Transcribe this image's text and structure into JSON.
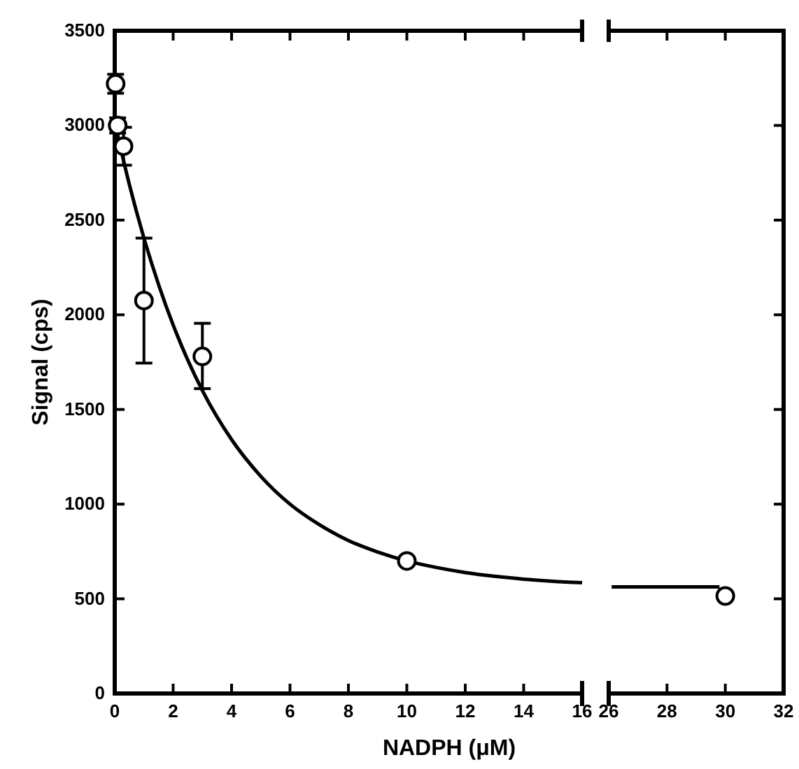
{
  "chart_data": [
    {
      "type": "scatter",
      "xlabel": "NADPH (μM)",
      "ylabel": "Signal (cps)",
      "xlim": [
        0,
        16
      ],
      "ylim": [
        0,
        3500
      ],
      "xticks": [
        0,
        2,
        4,
        6,
        8,
        10,
        12,
        14,
        16
      ],
      "yticks": [
        0,
        500,
        1000,
        1500,
        2000,
        2500,
        3000,
        3500
      ],
      "series": [
        {
          "color": "#000000",
          "marker": "circle",
          "x": [
            0.03,
            0.1,
            0.3,
            1,
            3,
            10
          ],
          "values": [
            3220,
            3000,
            2890,
            2075,
            1780,
            700
          ],
          "errors": [
            [
              3170,
              3270
            ],
            [
              2960,
              3040
            ],
            [
              2790,
              2990
            ],
            [
              1745,
              2405
            ],
            [
              1610,
              1955
            ],
            null
          ]
        },
        {
          "type": "line",
          "color": "#000000",
          "x": [
            0,
            0.5,
            1,
            1.5,
            2,
            2.5,
            3,
            4,
            5,
            6,
            7,
            8,
            9,
            10,
            11,
            12,
            13,
            14,
            15,
            16
          ],
          "values": [
            3017,
            2688,
            2405,
            2160,
            1946,
            1761,
            1600,
            1341,
            1147,
            1000,
            892,
            808,
            747,
            700,
            666,
            639,
            619,
            604,
            593,
            585
          ]
        }
      ]
    },
    {
      "type": "scatter",
      "xlim": [
        26,
        32
      ],
      "ylim": [
        0,
        3500
      ],
      "xticks": [
        26,
        28,
        30,
        32
      ],
      "yticks": [
        {
          "value": 0,
          "label": null
        },
        {
          "value": 500,
          "label": null
        },
        {
          "value": 1000,
          "label": null
        },
        {
          "value": 1500,
          "label": null
        },
        {
          "value": 2000,
          "label": null
        },
        {
          "value": 2500,
          "label": null
        },
        {
          "value": 3000,
          "label": null
        },
        {
          "value": 3500,
          "label": null
        }
      ],
      "tick_labels": "x",
      "series": [
        {
          "color": "#000000",
          "marker": "circle",
          "x": [
            30
          ],
          "values": [
            515
          ]
        },
        {
          "type": "line",
          "color": "#000000",
          "x": [
            26.1,
            29.8
          ],
          "values": [
            563,
            563
          ]
        }
      ]
    }
  ]
}
